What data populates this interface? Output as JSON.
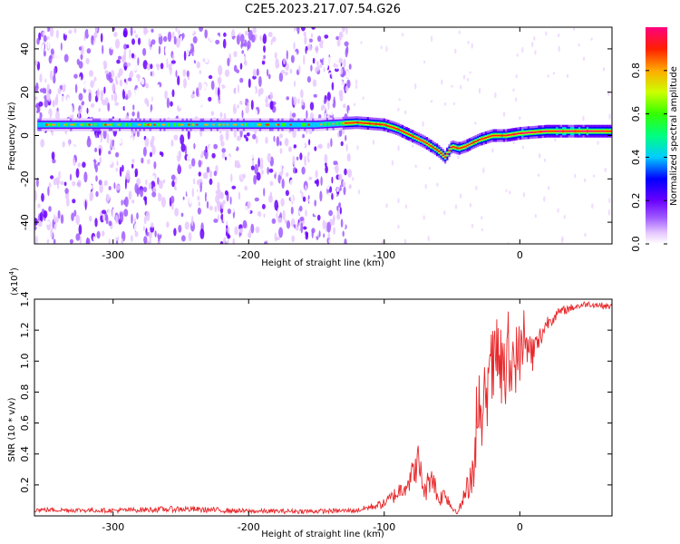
{
  "title": "C2E5.2023.217.07.54.G26",
  "chart_data": [
    {
      "type": "heatmap",
      "xlabel": "Height of straight line (km)",
      "ylabel": "Frequency (Hz)",
      "xlim": [
        -358,
        68
      ],
      "ylim": [
        -50,
        50
      ],
      "xticks": [
        -300,
        -200,
        -100,
        0
      ],
      "yticks": [
        -40,
        -20,
        0,
        20,
        40
      ],
      "xticklabels": [
        "-300",
        "-200",
        "-100",
        "0"
      ],
      "yticklabels": [
        "-40",
        "-20",
        "0",
        "20",
        "40"
      ],
      "ridge": {
        "x": [
          -355,
          -300,
          -250,
          -200,
          -150,
          -120,
          -100,
          -90,
          -80,
          -70,
          -60,
          -55,
          -50,
          -45,
          -40,
          -30,
          -20,
          -10,
          0,
          20,
          40,
          68
        ],
        "y": [
          5,
          5,
          5,
          5,
          5,
          6,
          5,
          3,
          0,
          -3,
          -7,
          -10,
          -5,
          -6,
          -5,
          -2,
          0,
          0,
          1,
          2,
          2,
          2
        ]
      },
      "noise_region_x": [
        -358,
        -125
      ],
      "colorbar": {
        "label": "Normalized spectral amplitude",
        "range": [
          0,
          1
        ],
        "ticks": [
          "0.0",
          "0.2",
          "0.4",
          "0.6",
          "0.8"
        ],
        "tick_values": [
          0,
          0.2,
          0.4,
          0.6,
          0.8
        ]
      }
    },
    {
      "type": "line",
      "xlabel": "Height of straight line (km)",
      "ylabel": "SNR (10 * v/v)",
      "exponent_label": "(x10",
      "exponent_sup": "4",
      "exponent_close": ")",
      "xlim": [
        -358,
        68
      ],
      "ylim": [
        0,
        14000
      ],
      "xticks": [
        -300,
        -200,
        -100,
        0
      ],
      "xticklabels": [
        "-300",
        "-200",
        "-100",
        "0"
      ],
      "yticks": [
        2000,
        4000,
        6000,
        8000,
        10000,
        12000,
        14000
      ],
      "yticklabels": [
        "0.2",
        "0.4",
        "0.6",
        "0.8",
        "1.0",
        "1.2",
        "1.4"
      ],
      "series": [
        {
          "color": "#e8272a",
          "x": [
            -358,
            -300,
            -250,
            -200,
            -150,
            -120,
            -100,
            -90,
            -80,
            -75,
            -70,
            -65,
            -60,
            -55,
            -50,
            -45,
            -40,
            -35,
            -30,
            -25,
            -20,
            -15,
            -10,
            -5,
            0,
            5,
            10,
            15,
            20,
            30,
            40,
            50,
            60,
            68
          ],
          "y": [
            400,
            350,
            450,
            300,
            300,
            350,
            800,
            1500,
            2500,
            3500,
            1500,
            2800,
            1000,
            1500,
            500,
            300,
            1500,
            3000,
            5000,
            8000,
            9500,
            10000,
            9000,
            10000,
            10500,
            11000,
            10500,
            11500,
            12500,
            13200,
            13500,
            13700,
            13600,
            13500
          ],
          "noise_amp": [
            150,
            150,
            200,
            150,
            150,
            150,
            300,
            600,
            900,
            1200,
            800,
            1000,
            500,
            600,
            300,
            200,
            700,
            1500,
            2000,
            2500,
            2800,
            3000,
            3000,
            2500,
            2000,
            1500,
            1200,
            800,
            500,
            300,
            250,
            200,
            200,
            200
          ]
        }
      ]
    }
  ]
}
